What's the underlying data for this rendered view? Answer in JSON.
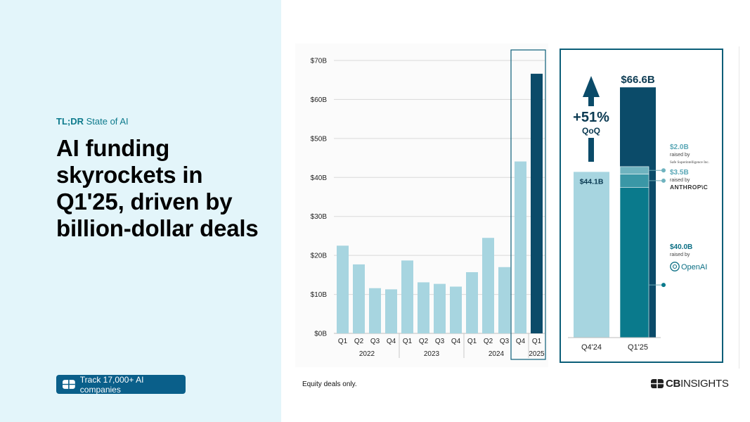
{
  "eyebrow": {
    "strong": "TL;DR",
    "rest": " State of AI"
  },
  "headline": "AI funding skyrockets in Q1'25, driven by billion-dollar deals",
  "cta": {
    "icon": "cb-square-icon",
    "label": "Track 17,000+ AI companies"
  },
  "footnote": "Equity deals only.",
  "logo": {
    "icon": "cb-insights-logo-icon",
    "strong": "CB",
    "rest": "INSIGHTS"
  },
  "colors": {
    "light_bar": "#a7d5e0",
    "dark_bar": "#0b4b69",
    "teal": "#0a7a8c",
    "mid_teal": "#3a97a6",
    "highlight_border": "#0b5e78",
    "left_panel": "#e3f5fa"
  },
  "chart_data": [
    {
      "type": "bar",
      "quarters": [
        "Q1",
        "Q2",
        "Q3",
        "Q4",
        "Q1",
        "Q2",
        "Q3",
        "Q4",
        "Q1",
        "Q2",
        "Q3",
        "Q4",
        "Q1"
      ],
      "years": [
        {
          "label": "2022",
          "start": 0,
          "end": 3
        },
        {
          "label": "2023",
          "start": 4,
          "end": 7
        },
        {
          "label": "2024",
          "start": 8,
          "end": 11
        },
        {
          "label": "2025",
          "start": 12,
          "end": 12
        }
      ],
      "values": [
        22.5,
        17.7,
        11.6,
        11.3,
        18.7,
        13.1,
        12.7,
        12.0,
        15.7,
        24.5,
        17.0,
        44.1,
        66.6
      ],
      "y_ticks": [
        "$0B",
        "$10B",
        "$20B",
        "$30B",
        "$40B",
        "$50B",
        "$60B",
        "$70B"
      ],
      "ylim": [
        0,
        70
      ],
      "grid": true,
      "highlight_range": [
        11,
        12
      ]
    },
    {
      "type": "bar",
      "categories": [
        "Q4'24",
        "Q1'25"
      ],
      "values": [
        44.1,
        66.6
      ],
      "value_labels": [
        "$44.1B",
        "$66.6B"
      ],
      "growth": {
        "value": "+51%",
        "label": "QoQ"
      },
      "segments": [
        {
          "amount": 2.0,
          "label": "$2.0B",
          "raised_by": "raised by",
          "company": "Safe Superintelligence Inc."
        },
        {
          "amount": 3.5,
          "label": "$3.5B",
          "raised_by": "raised by",
          "company": "ANTHROP\\C"
        },
        {
          "amount": 40.0,
          "label": "$40.0B",
          "raised_by": "raised by",
          "company": "OpenAI",
          "icon": "openai-logo-icon"
        }
      ],
      "ylim": [
        0,
        70
      ]
    }
  ]
}
